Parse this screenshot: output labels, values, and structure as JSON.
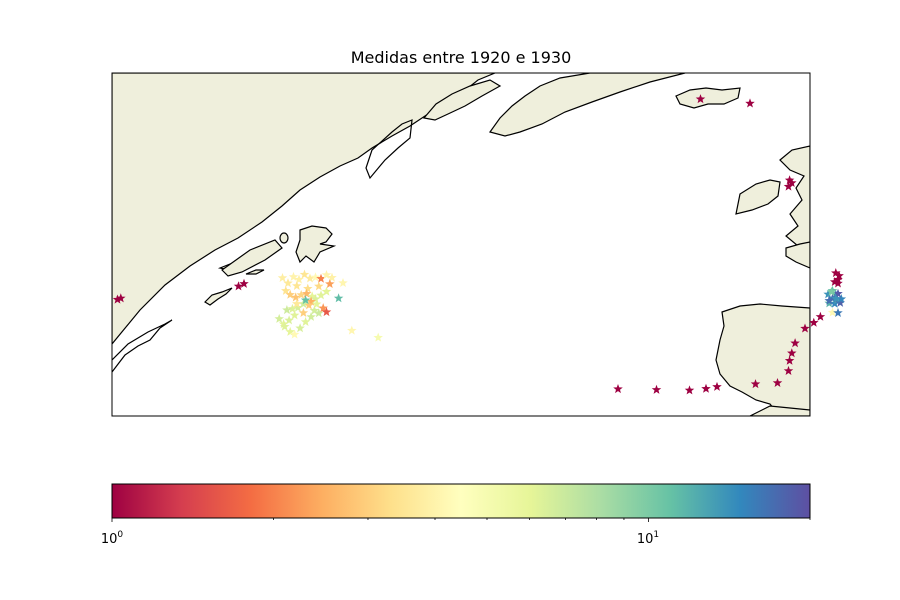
{
  "title": "Medidas entre 1920 e 1930",
  "colors": {
    "land": "#efefdc",
    "coast": "#000000",
    "ocean": "#ffffff"
  },
  "colorbar": {
    "scale": "log",
    "range": [
      1,
      20
    ],
    "colormap": [
      "#9e0142",
      "#d53e4f",
      "#f46d43",
      "#fdae61",
      "#fee08b",
      "#ffffbf",
      "#e6f598",
      "#abdda4",
      "#66c2a5",
      "#3288bd",
      "#5e4fa2"
    ],
    "tick_labels": [
      {
        "base": "10",
        "exp": "0",
        "value": 1
      },
      {
        "base": "10",
        "exp": "1",
        "value": 10
      }
    ]
  },
  "marker": "star",
  "chart_data": {
    "type": "scatter",
    "color_scale": "log",
    "color_range": [
      1,
      20
    ],
    "points": [
      [
        -71.5,
        46.8,
        1.0
      ],
      [
        -71.2,
        46.9,
        1.0
      ],
      [
        -60.5,
        47.9,
        1.0
      ],
      [
        -60.0,
        48.1,
        1.0
      ],
      [
        -56.5,
        48.6,
        3.8
      ],
      [
        -56.0,
        48.2,
        3.6
      ],
      [
        -55.5,
        48.7,
        4.0
      ],
      [
        -55.0,
        48.5,
        3.9
      ],
      [
        -54.5,
        48.9,
        3.5
      ],
      [
        -54.0,
        48.6,
        3.7
      ],
      [
        -53.5,
        48.7,
        4.2
      ],
      [
        -53.0,
        48.6,
        2.0
      ],
      [
        -52.5,
        48.9,
        4.0
      ],
      [
        -52.0,
        48.7,
        3.9
      ],
      [
        -51.0,
        48.3,
        4.1
      ],
      [
        -52.2,
        48.2,
        2.3
      ],
      [
        -53.2,
        48.0,
        3.2
      ],
      [
        -54.2,
        47.8,
        3.3
      ],
      [
        -55.2,
        48.0,
        3.5
      ],
      [
        -56.2,
        47.6,
        3.4
      ],
      [
        -55.8,
        47.3,
        3.0
      ],
      [
        -55.3,
        47.1,
        2.8
      ],
      [
        -54.8,
        47.3,
        3.1
      ],
      [
        -54.3,
        47.4,
        2.6
      ],
      [
        -53.8,
        47.2,
        6.0
      ],
      [
        -53.5,
        47.0,
        6.4
      ],
      [
        -53.0,
        47.3,
        6.2
      ],
      [
        -52.5,
        47.6,
        6.1
      ],
      [
        -53.9,
        46.8,
        2.5
      ],
      [
        -54.1,
        46.5,
        2.9
      ],
      [
        -54.6,
        46.6,
        6.7
      ],
      [
        -55.1,
        46.3,
        6.5
      ],
      [
        -55.6,
        46.2,
        6.3
      ],
      [
        -56.1,
        46.1,
        6.8
      ],
      [
        -53.6,
        46.1,
        6.6
      ],
      [
        -53.2,
        45.9,
        6.9
      ],
      [
        -52.8,
        46.3,
        2.2
      ],
      [
        -53.4,
        46.6,
        6.0
      ],
      [
        -54.4,
        46.9,
        11.0
      ],
      [
        -55.4,
        45.7,
        6.2
      ],
      [
        -55.9,
        45.3,
        6.4
      ],
      [
        -56.4,
        45.0,
        6.1
      ],
      [
        -56.8,
        45.4,
        6.6
      ],
      [
        -56.3,
        44.8,
        6.3
      ],
      [
        -55.8,
        44.4,
        6.0
      ],
      [
        -55.4,
        44.2,
        4.2
      ],
      [
        -54.9,
        44.7,
        6.5
      ],
      [
        -54.4,
        45.2,
        6.2
      ],
      [
        -53.9,
        45.6,
        6.7
      ],
      [
        -52.5,
        46.0,
        1.6
      ],
      [
        -51.4,
        47.1,
        11.3
      ],
      [
        -50.2,
        44.6,
        4.1
      ],
      [
        -47.8,
        44.1,
        5.0
      ],
      [
        -54.6,
        45.9,
        3.0
      ],
      [
        -55.2,
        46.6,
        3.6
      ],
      [
        -26.0,
        40.8,
        1.0
      ],
      [
        -22.5,
        40.9,
        1.0
      ],
      [
        -19.5,
        41.0,
        1.0
      ],
      [
        -18.0,
        41.2,
        1.0
      ],
      [
        -17.0,
        41.4,
        1.0
      ],
      [
        -13.5,
        41.8,
        1.0
      ],
      [
        -11.5,
        42.0,
        1.0
      ],
      [
        -10.5,
        43.0,
        1.0
      ],
      [
        -10.4,
        43.8,
        1.0
      ],
      [
        -10.2,
        44.4,
        1.0
      ],
      [
        -9.9,
        45.2,
        1.0
      ],
      [
        -9.0,
        46.4,
        1.0
      ],
      [
        -8.2,
        46.9,
        1.0
      ],
      [
        -7.6,
        47.4,
        1.0
      ],
      [
        -6.5,
        47.8,
        4.2
      ],
      [
        -6.0,
        47.8,
        16.0
      ],
      [
        -6.8,
        48.5,
        12.0
      ],
      [
        -6.3,
        48.5,
        15.0
      ],
      [
        -6.1,
        48.8,
        13.0
      ],
      [
        -6.5,
        48.9,
        17.0
      ],
      [
        -6.9,
        49.2,
        14.0
      ],
      [
        -6.2,
        49.2,
        16.0
      ],
      [
        -5.8,
        48.6,
        18.0
      ],
      [
        -5.7,
        48.9,
        15.0
      ],
      [
        -6.0,
        49.3,
        19.0
      ],
      [
        -6.5,
        49.5,
        11.0
      ],
      [
        -6.8,
        48.7,
        17.0
      ],
      [
        -6.2,
        48.9,
        14.0
      ],
      [
        -6.3,
        50.2,
        1.0
      ],
      [
        -6.0,
        50.4,
        1.0
      ],
      [
        -5.9,
        50.7,
        1.0
      ],
      [
        -6.2,
        50.9,
        1.0
      ],
      [
        -6.0,
        50.1,
        1.0
      ],
      [
        -6.6,
        49.4,
        10.0
      ],
      [
        -10.5,
        57.4,
        1.0
      ],
      [
        -10.2,
        57.7,
        1.0
      ],
      [
        -10.4,
        57.9,
        1.0
      ],
      [
        -18.5,
        63.8,
        1.0
      ],
      [
        -14.0,
        63.7,
        1.0
      ]
    ]
  }
}
